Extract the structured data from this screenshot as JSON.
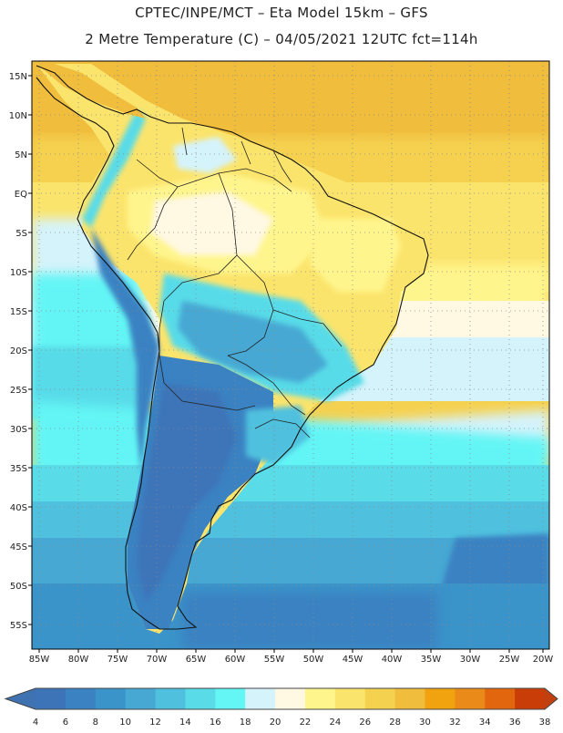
{
  "header": {
    "line1": "CPTEC/INPE/MCT –  Eta Model 15km – GFS",
    "line2": "2 Metre Temperature (C) – 04/05/2021 12UTC fct=114h"
  },
  "map": {
    "lat_labels": [
      "15N",
      "10N",
      "5N",
      "EQ",
      "5S",
      "10S",
      "15S",
      "20S",
      "25S",
      "30S",
      "35S",
      "40S",
      "45S",
      "50S",
      "55S"
    ],
    "lon_labels": [
      "85W",
      "80W",
      "75W",
      "70W",
      "65W",
      "60W",
      "55W",
      "50W",
      "45W",
      "40W",
      "35W",
      "30W",
      "25W",
      "20W"
    ]
  },
  "colorbar": {
    "labels": [
      "4",
      "6",
      "8",
      "10",
      "12",
      "14",
      "16",
      "18",
      "20",
      "22",
      "24",
      "26",
      "28",
      "30",
      "32",
      "34",
      "36",
      "38"
    ],
    "colors": [
      "#3d74b8",
      "#3a82c2",
      "#3a93c9",
      "#46a8d3",
      "#4fc1de",
      "#59dbe8",
      "#64f5f5",
      "#d5f3fb",
      "#fff8e2",
      "#fff58d",
      "#fbe46c",
      "#f5d150",
      "#f0bd3c",
      "#f0a30e",
      "#ea8a18",
      "#e2660e",
      "#c93e08"
    ],
    "low_color": "#3e72b0",
    "high_color": "#c04010"
  }
}
